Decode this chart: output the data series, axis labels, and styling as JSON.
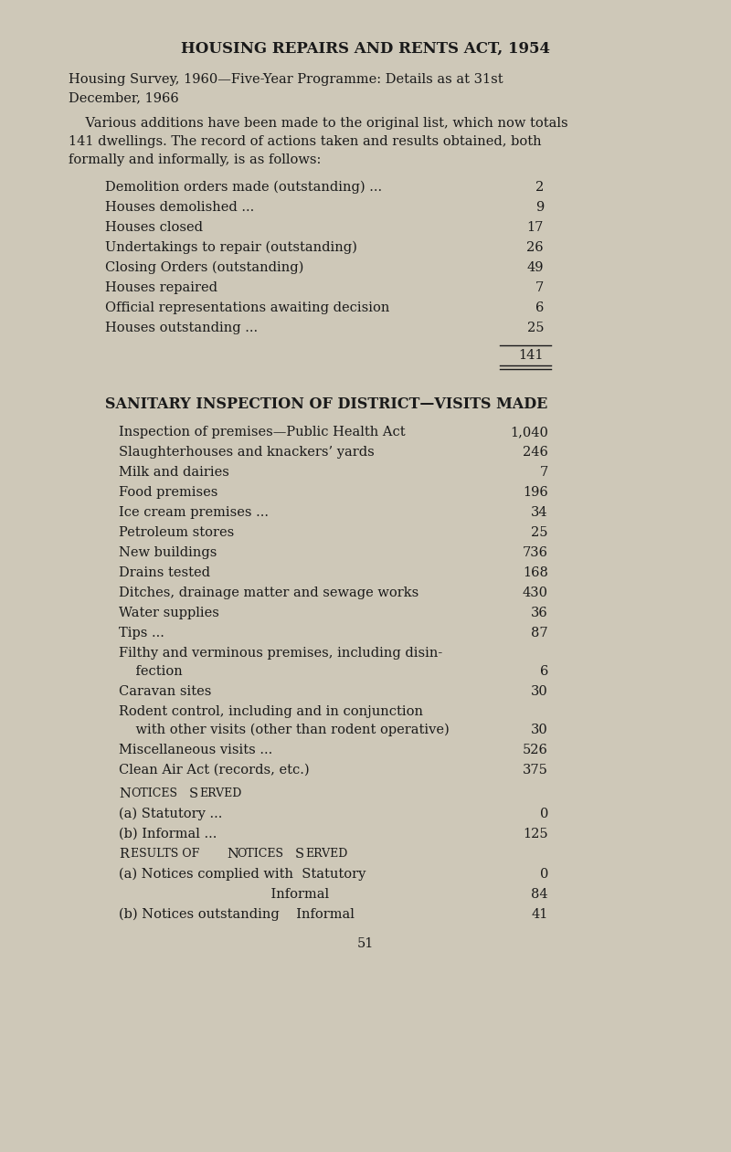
{
  "bg_color": "#cec8b8",
  "text_color": "#1a1a1a",
  "title": "HOUSING REPAIRS AND RENTS ACT, 1954",
  "subtitle_line1": "Housing Survey, 1960—Five-Year Programme: Details as at 31st",
  "subtitle_line2": "December, 1966",
  "intro_lines": [
    "    Various additions have been made to the original list, which now totals",
    "141 dwellings. The record of actions taken and results obtained, both",
    "formally and informally, is as follows:"
  ],
  "section1_items": [
    [
      "Demolition orders made (outstanding) ...",
      "... ...",
      "2"
    ],
    [
      "Houses demolished ...",
      "... ... ... ...",
      "9"
    ],
    [
      "Houses closed",
      "... ... ... ... ...",
      "17"
    ],
    [
      "Undertakings to repair (outstanding)",
      "... ...",
      "26"
    ],
    [
      "Closing Orders (outstanding)",
      "... ... ...",
      "49"
    ],
    [
      "Houses repaired",
      "... ... ... ... ...",
      "7"
    ],
    [
      "Official representations awaiting decision",
      "...",
      "6"
    ],
    [
      "Houses outstanding ...",
      "... ... ... ...",
      "25"
    ]
  ],
  "section1_total": "141",
  "section2_title": "SANITARY INSPECTION OF DISTRICT—VISITS MADE",
  "section2_items": [
    {
      "label": "Inspection of premises—Public Health Act",
      "dots": "... ",
      "value": "1,040",
      "wrap": false
    },
    {
      "label": "Slaughterhouses and knackers’ yards",
      "dots": "... ... ",
      "value": "246",
      "wrap": false
    },
    {
      "label": "Milk and dairies",
      "dots": "... ... ... ...",
      "value": "7",
      "wrap": false
    },
    {
      "label": "Food premises",
      "dots": "... ... ... ... ...",
      "value": "196",
      "wrap": false
    },
    {
      "label": "Ice cream premises ...",
      "dots": "... ... ... ...",
      "value": "34",
      "wrap": false
    },
    {
      "label": "Petroleum stores",
      "dots": "... ... ... ... ...",
      "value": "25",
      "wrap": false
    },
    {
      "label": "New buildings",
      "dots": "... ... ... ... ...",
      "value": "736",
      "wrap": false
    },
    {
      "label": "Drains tested",
      "dots": "... ... ... ... ...",
      "value": "168",
      "wrap": false
    },
    {
      "label": "Ditches, drainage matter and sewage works",
      "dots": "...",
      "value": "430",
      "wrap": false
    },
    {
      "label": "Water supplies",
      "dots": "... ... ... ... ...",
      "value": "36",
      "wrap": false
    },
    {
      "label": "Tips ...",
      "dots": "... ... ... ... ...",
      "value": "87",
      "wrap": false
    },
    {
      "label": "Filthy and verminous premises, including disin-",
      "label2": "    fection",
      "dots": "... ... ... ... ...",
      "value": "6",
      "wrap": true
    },
    {
      "label": "Caravan sites",
      "dots": "... ... ... ... ...",
      "value": "30",
      "wrap": false
    },
    {
      "label": "Rodent control, including and in conjunction",
      "label2": "    with other visits (other than rodent operative)",
      "dots": "",
      "value": "30",
      "wrap": true
    },
    {
      "label": "Miscellaneous visits ...",
      "dots": "... ... ... ...",
      "value": "526",
      "wrap": false
    },
    {
      "label": "Clean Air Act (records, etc.)",
      "dots": "... ... ...",
      "value": "375",
      "wrap": false
    }
  ],
  "notices_served_title": "Notices Served",
  "notices_items": [
    [
      "(a) Statutory ...",
      "... ... ... ... ...",
      "0"
    ],
    [
      "(b) Informal ...",
      "... ... ... ... ...",
      "125"
    ]
  ],
  "results_title": "Results of Notices Served",
  "results_items": [
    [
      "(a) Notices complied with  Statutory",
      "... ...",
      "0"
    ],
    [
      "                                    Informal",
      "... ...",
      "84"
    ],
    [
      "(b) Notices outstanding    Informal",
      "... ...",
      "41"
    ]
  ],
  "page_number": "51",
  "figwidth": 8.0,
  "figheight": 12.61,
  "dpi": 100
}
